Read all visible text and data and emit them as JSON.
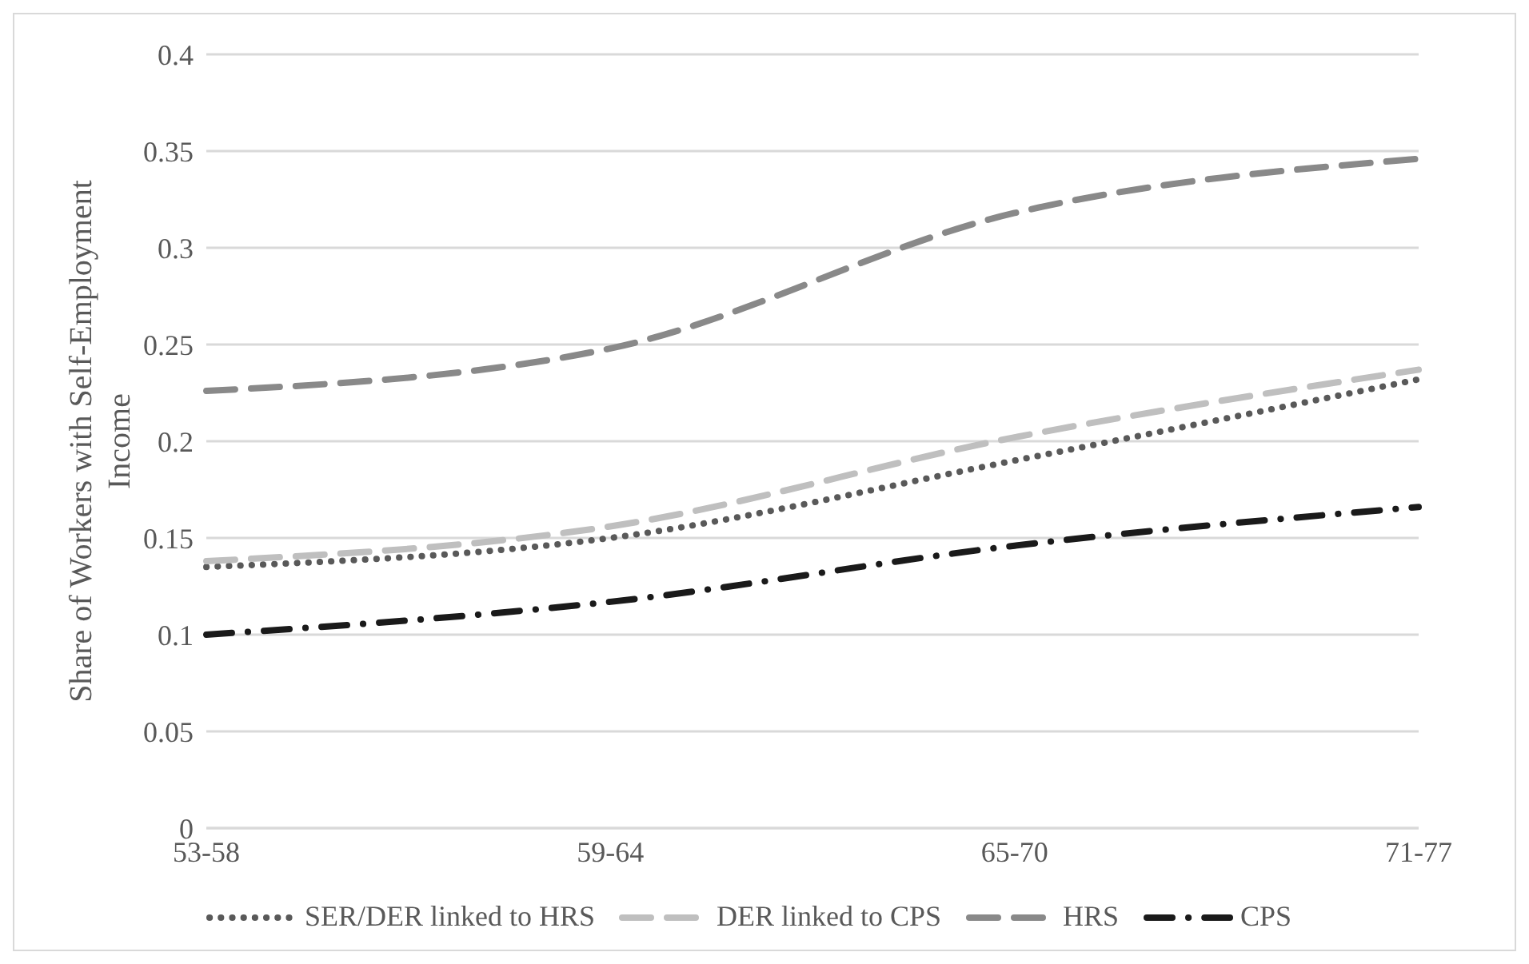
{
  "chart_data": {
    "type": "line",
    "ylabel": "Share of Workers with Self-Employment Income",
    "categories": [
      "53-58",
      "59-64",
      "65-70",
      "71-77"
    ],
    "series": [
      {
        "name": "SER/DER linked to HRS",
        "color": "#595959",
        "line_style": "dotted",
        "values": [
          0.135,
          0.15,
          0.19,
          0.232
        ]
      },
      {
        "name": "DER linked to CPS",
        "color": "#bfbfbf",
        "line_style": "dashed",
        "values": [
          0.138,
          0.156,
          0.202,
          0.237
        ]
      },
      {
        "name": "HRS",
        "color": "#898989",
        "line_style": "dashed",
        "values": [
          0.226,
          0.248,
          0.318,
          0.346
        ]
      },
      {
        "name": "CPS",
        "color": "#1a1a1a",
        "line_style": "dashdot",
        "values": [
          0.1,
          0.117,
          0.146,
          0.166
        ]
      }
    ],
    "ylim": [
      0,
      0.4
    ],
    "yticks": [
      0,
      0.05,
      0.1,
      0.15,
      0.2,
      0.25,
      0.3,
      0.35,
      0.4
    ],
    "grid": "y",
    "legend": "bottom",
    "marker": "none"
  }
}
